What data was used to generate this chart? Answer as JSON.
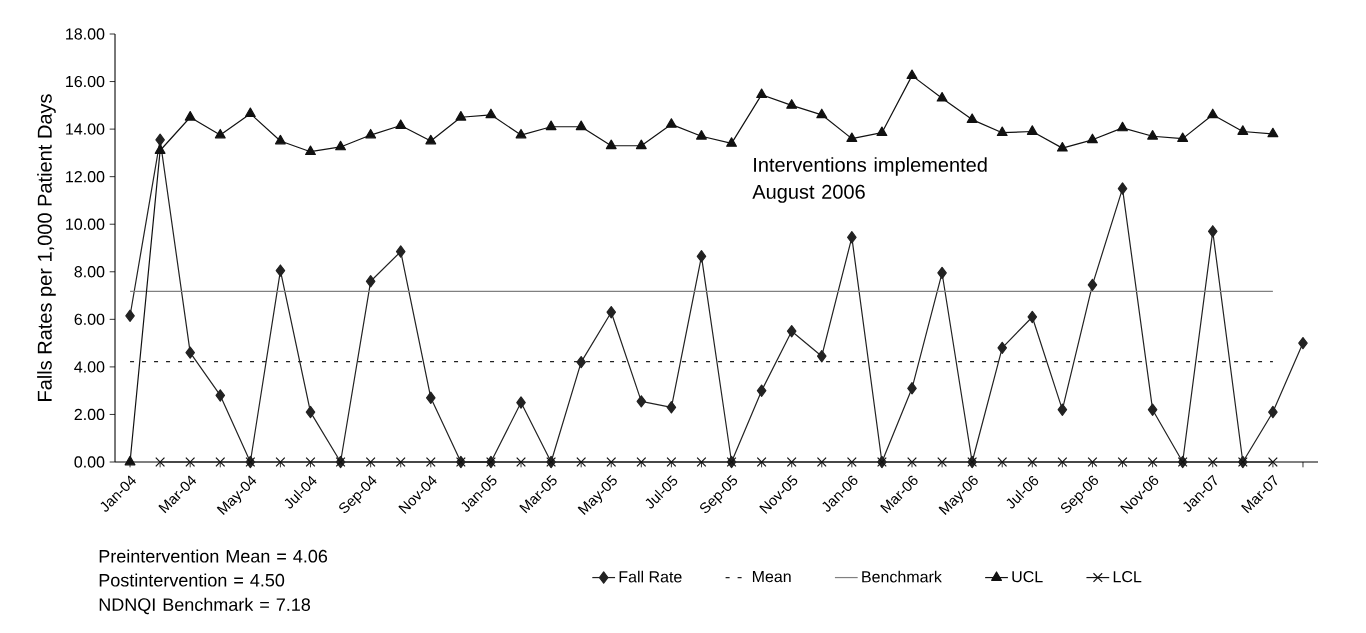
{
  "chart_data": {
    "type": "line",
    "ylabel": "Falls Rates per 1,000 Patient Days",
    "categories": [
      "Jan-04",
      null,
      "Mar-04",
      null,
      "May-04",
      null,
      "Jul-04",
      null,
      "Sep-04",
      null,
      "Nov-04",
      null,
      "Jan-05",
      null,
      "Mar-05",
      null,
      "May-05",
      null,
      "Jul-05",
      null,
      "Sep-05",
      null,
      "Nov-05",
      null,
      "Jan-06",
      null,
      "Mar-06",
      null,
      "May-06",
      null,
      "Jul-06",
      null,
      "Sep-06",
      null,
      "Nov-06",
      null,
      "Jan-07",
      null,
      "Mar-07",
      null
    ],
    "series": [
      {
        "name": "Fall Rate",
        "color": "#222222",
        "marker": "diamond",
        "line_style": "solid",
        "values": [
          6.15,
          13.55,
          4.6,
          2.8,
          0,
          8.05,
          2.1,
          0,
          7.6,
          8.85,
          2.7,
          0,
          0,
          2.5,
          0,
          4.2,
          6.3,
          2.55,
          2.3,
          8.65,
          0,
          3.0,
          5.5,
          4.45,
          9.45,
          0,
          3.1,
          7.95,
          0,
          4.8,
          6.1,
          2.2,
          7.45,
          11.5,
          2.2,
          0,
          9.7,
          0,
          2.1,
          5.0
        ]
      },
      {
        "name": "Mean",
        "color": "#222222",
        "marker": "none",
        "line_style": "dashed",
        "values": [
          4.22,
          4.22,
          4.22,
          4.22,
          4.22,
          4.22,
          4.22,
          4.22,
          4.22,
          4.22,
          4.22,
          4.22,
          4.22,
          4.22,
          4.22,
          4.22,
          4.22,
          4.22,
          4.22,
          4.22,
          4.22,
          4.22,
          4.22,
          4.22,
          4.22,
          4.22,
          4.22,
          4.22,
          4.22,
          4.22,
          4.22,
          4.22,
          4.22,
          4.22,
          4.22,
          4.22,
          4.22,
          4.22,
          4.22,
          null
        ]
      },
      {
        "name": "Benchmark",
        "color": "#808080",
        "marker": "none",
        "line_style": "solid",
        "values": [
          7.18,
          7.18,
          7.18,
          7.18,
          7.18,
          7.18,
          7.18,
          7.18,
          7.18,
          7.18,
          7.18,
          7.18,
          7.18,
          7.18,
          7.18,
          7.18,
          7.18,
          7.18,
          7.18,
          7.18,
          7.18,
          7.18,
          7.18,
          7.18,
          7.18,
          7.18,
          7.18,
          7.18,
          7.18,
          7.18,
          7.18,
          7.18,
          7.18,
          7.18,
          7.18,
          7.18,
          7.18,
          7.18,
          7.18,
          null
        ]
      },
      {
        "name": "UCL",
        "color": "#111111",
        "marker": "triangle",
        "line_style": "solid",
        "values": [
          0,
          13.1,
          14.5,
          13.75,
          14.65,
          13.5,
          13.05,
          13.25,
          13.75,
          14.15,
          13.5,
          14.5,
          14.6,
          13.75,
          14.1,
          14.1,
          13.3,
          13.3,
          14.2,
          13.7,
          13.4,
          15.45,
          15.0,
          14.6,
          13.6,
          13.85,
          16.25,
          15.3,
          14.4,
          13.85,
          13.9,
          13.2,
          13.55,
          14.05,
          13.7,
          13.6,
          14.6,
          13.9,
          13.8,
          null
        ]
      },
      {
        "name": "LCL",
        "color": "#111111",
        "marker": "cross",
        "line_style": "solid",
        "values": [
          null,
          0,
          0,
          0,
          0,
          0,
          0,
          0,
          0,
          0,
          0,
          0,
          0,
          0,
          0,
          0,
          0,
          0,
          0,
          0,
          0,
          0,
          0,
          0,
          0,
          0,
          0,
          0,
          0,
          0,
          0,
          0,
          0,
          0,
          0,
          0,
          0,
          0,
          0,
          null
        ]
      }
    ],
    "ylim": [
      0,
      18
    ],
    "yticks": [
      {
        "value": 0,
        "label": "0.00"
      },
      {
        "value": 2,
        "label": "2.00"
      },
      {
        "value": 4,
        "label": "4.00"
      },
      {
        "value": 6,
        "label": "6.00"
      },
      {
        "value": 8,
        "label": "8.00"
      },
      {
        "value": 10,
        "label": "10.00"
      },
      {
        "value": 12,
        "label": "12.00"
      },
      {
        "value": 14,
        "label": "14.00"
      },
      {
        "value": 16,
        "label": "16.00"
      },
      {
        "value": 18,
        "label": "18.00"
      }
    ],
    "grid": false,
    "legend": "bottom",
    "annotations": [
      "Interventions implemented August 2006",
      "Preintervention Mean = 4.06",
      "Postintervention = 4.50",
      "NDNQI Benchmark = 7.18"
    ]
  }
}
